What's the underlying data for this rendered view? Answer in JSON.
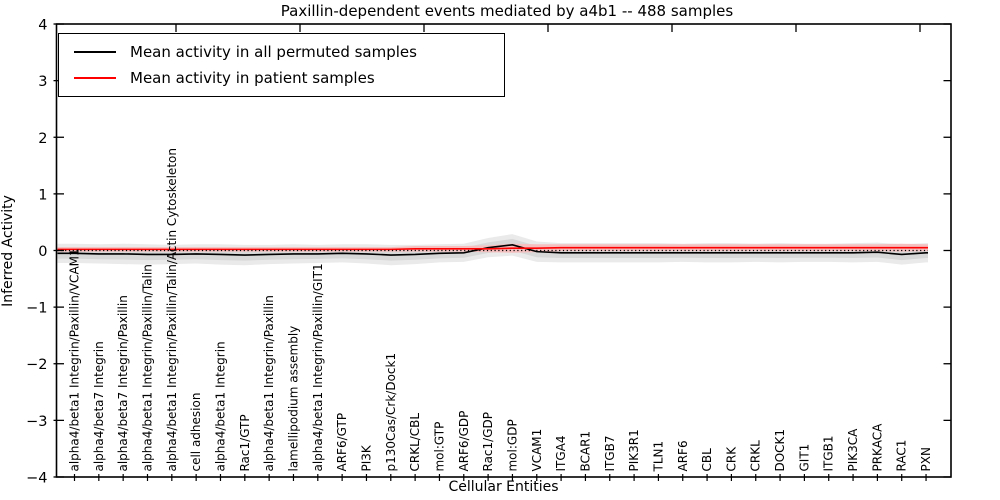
{
  "chart_data": {
    "type": "line",
    "title": "Paxillin-dependent events mediated by a4b1 -- 488 samples",
    "xlabel": "Cellular Entities",
    "ylabel": "Inferred Activity",
    "ylim": [
      -4,
      4
    ],
    "ytick_values": [
      4,
      3,
      2,
      1,
      0,
      -1,
      -2,
      -3,
      -4
    ],
    "ytick_labels": [
      "4",
      "3",
      "2",
      "1",
      "0",
      "−1",
      "−2",
      "−3",
      "−4"
    ],
    "grid": false,
    "legend_position": "upper left",
    "zero_line": true,
    "categories": [
      "alpha4/beta1 Integrin/Paxillin/VCAM1",
      "alpha4/beta7 Integrin",
      "alpha4/beta7 Integrin/Paxillin",
      "alpha4/beta1 Integrin/Paxillin/Talin",
      "alpha4/beta1 Integrin/Paxillin/Talin/Actin Cytoskeleton",
      "cell adhesion",
      "alpha4/beta1 Integrin",
      "Rac1/GTP",
      "alpha4/beta1 Integrin/Paxillin",
      "lamellipodium assembly",
      "alpha4/beta1 Integrin/Paxillin/GIT1",
      "ARF6/GTP",
      "PI3K",
      "p130Cas/Crk/Dock1",
      "CRKL/CBL",
      "mol:GTP",
      "ARF6/GDP",
      "Rac1/GDP",
      "mol:GDP",
      "VCAM1",
      "ITGA4",
      "BCAR1",
      "ITGB7",
      "PIK3R1",
      "TLN1",
      "ARF6",
      "CBL",
      "CRK",
      "CRKL",
      "DOCK1",
      "GIT1",
      "ITGB1",
      "PIK3CA",
      "PRKACA",
      "RAC1",
      "PXN"
    ],
    "series": [
      {
        "name": "Mean activity in all permuted samples",
        "color": "#000000",
        "values": [
          -0.05,
          -0.06,
          -0.06,
          -0.07,
          -0.07,
          -0.06,
          -0.07,
          -0.08,
          -0.07,
          -0.06,
          -0.06,
          -0.05,
          -0.06,
          -0.08,
          -0.07,
          -0.05,
          -0.04,
          0.05,
          0.1,
          -0.02,
          -0.04,
          -0.04,
          -0.04,
          -0.04,
          -0.04,
          -0.04,
          -0.04,
          -0.04,
          -0.04,
          -0.04,
          -0.04,
          -0.04,
          -0.04,
          -0.03,
          -0.07,
          -0.04
        ],
        "band_halfwidth": [
          0.17,
          0.17,
          0.18,
          0.18,
          0.17,
          0.17,
          0.18,
          0.18,
          0.17,
          0.17,
          0.16,
          0.16,
          0.17,
          0.18,
          0.17,
          0.16,
          0.16,
          0.17,
          0.19,
          0.18,
          0.17,
          0.17,
          0.17,
          0.17,
          0.17,
          0.16,
          0.17,
          0.17,
          0.16,
          0.17,
          0.16,
          0.16,
          0.17,
          0.17,
          0.18,
          0.17
        ],
        "band_color": "#eaeaea",
        "band_inner_color": "#d8d8d8"
      },
      {
        "name": "Mean activity in patient samples",
        "color": "#ff0000",
        "values": [
          0.02,
          0.02,
          0.02,
          0.02,
          0.02,
          0.02,
          0.02,
          0.02,
          0.02,
          0.02,
          0.02,
          0.02,
          0.02,
          0.02,
          0.03,
          0.03,
          0.03,
          0.03,
          0.04,
          0.04,
          0.05,
          0.05,
          0.05,
          0.05,
          0.05,
          0.05,
          0.05,
          0.05,
          0.05,
          0.05,
          0.05,
          0.05,
          0.05,
          0.05,
          0.05,
          0.05
        ],
        "band_halfwidth": [
          0.04,
          0.04,
          0.04,
          0.04,
          0.04,
          0.04,
          0.04,
          0.04,
          0.04,
          0.04,
          0.04,
          0.04,
          0.04,
          0.04,
          0.05,
          0.05,
          0.05,
          0.06,
          0.08,
          0.07,
          0.06,
          0.06,
          0.06,
          0.06,
          0.06,
          0.06,
          0.06,
          0.06,
          0.06,
          0.06,
          0.06,
          0.06,
          0.06,
          0.06,
          0.07,
          0.06
        ],
        "band_color": "#f5bfbf"
      }
    ],
    "zero_line_color": "#000000",
    "frame_color": "#000000"
  }
}
